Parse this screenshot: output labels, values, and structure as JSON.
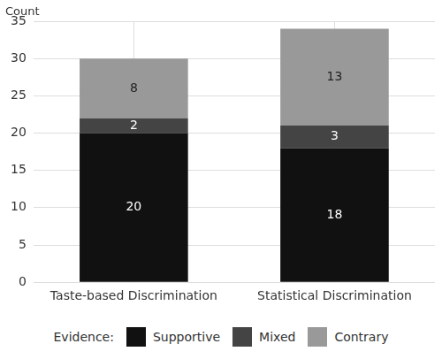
{
  "chart_data": {
    "type": "bar",
    "stacked": true,
    "y_label": "Count",
    "categories": [
      "Taste-based Discrimination",
      "Statistical Discrimination"
    ],
    "series": [
      {
        "name": "Supportive",
        "color": "#111111",
        "values": [
          20,
          18
        ]
      },
      {
        "name": "Mixed",
        "color": "#444444",
        "values": [
          2,
          3
        ]
      },
      {
        "name": "Contrary",
        "color": "#999999",
        "values": [
          8,
          13
        ]
      }
    ],
    "ylim": [
      0,
      35
    ],
    "yticks": [
      0,
      5,
      10,
      15,
      20,
      25,
      30,
      35
    ],
    "grid": true,
    "legend": "bottom",
    "legend_title": "Evidence:",
    "data_labels": true
  }
}
